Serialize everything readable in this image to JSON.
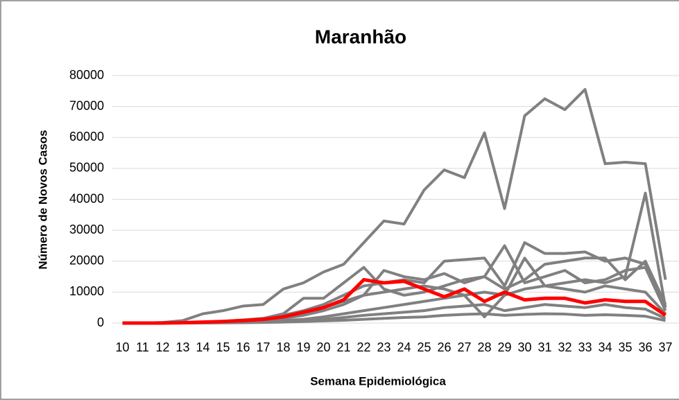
{
  "chart_data": {
    "type": "line",
    "title": "Maranhão",
    "x_label": "Semana Epidemiológica",
    "y_label": "Número de Novos Casos",
    "categories": [
      "10",
      "11",
      "12",
      "13",
      "14",
      "15",
      "16",
      "17",
      "18",
      "19",
      "20",
      "21",
      "22",
      "23",
      "24",
      "25",
      "26",
      "27",
      "28",
      "29",
      "30",
      "31",
      "32",
      "33",
      "34",
      "35",
      "36",
      "37"
    ],
    "ylim": [
      0,
      80000
    ],
    "yticks": [
      0,
      10000,
      20000,
      30000,
      40000,
      50000,
      60000,
      70000,
      80000
    ],
    "grid": true,
    "series": [
      {
        "color": "#808080",
        "values": [
          0,
          0,
          200,
          800,
          3000,
          4000,
          5500,
          6000,
          11000,
          13000,
          16500,
          19000,
          26000,
          33000,
          32000,
          43000,
          49500,
          47000,
          61500,
          37000,
          67000,
          72500,
          69000,
          75500,
          51500,
          52000,
          51500,
          14000
        ]
      },
      {
        "color": "#808080",
        "values": [
          0,
          0,
          0,
          100,
          300,
          600,
          1000,
          1500,
          2500,
          4000,
          6000,
          9000,
          12000,
          13000,
          14000,
          13000,
          20000,
          20500,
          21000,
          12000,
          26000,
          22500,
          22500,
          23000,
          20000,
          21000,
          19000,
          5000
        ]
      },
      {
        "color": "#808080",
        "values": [
          0,
          0,
          0,
          50,
          200,
          400,
          700,
          1000,
          1800,
          3000,
          5000,
          7000,
          9000,
          10000,
          11000,
          12000,
          11000,
          9000,
          10000,
          9000,
          11000,
          12000,
          13000,
          14000,
          13000,
          15000,
          42000,
          5000
        ]
      },
      {
        "color": "#808080",
        "values": [
          0,
          0,
          0,
          100,
          200,
          500,
          900,
          1500,
          3000,
          8000,
          8000,
          13000,
          18000,
          11000,
          9000,
          10000,
          12000,
          14000,
          15000,
          11000,
          14000,
          19000,
          20000,
          21000,
          21000,
          14000,
          20000,
          6000
        ]
      },
      {
        "color": "#808080",
        "values": [
          0,
          0,
          0,
          50,
          150,
          300,
          600,
          900,
          1500,
          2500,
          4000,
          6000,
          9000,
          17000,
          15000,
          14000,
          16000,
          13000,
          15000,
          25000,
          13000,
          15000,
          17000,
          13000,
          14000,
          17000,
          18000,
          4000
        ]
      },
      {
        "color": "#808080",
        "values": [
          0,
          0,
          0,
          0,
          100,
          200,
          300,
          500,
          800,
          1200,
          2000,
          3000,
          4000,
          5000,
          6000,
          7000,
          8000,
          9000,
          2000,
          9000,
          21000,
          12000,
          11000,
          10000,
          12000,
          11000,
          10000,
          3000
        ]
      },
      {
        "color": "#808080",
        "values": [
          0,
          0,
          0,
          0,
          50,
          100,
          200,
          300,
          500,
          800,
          1200,
          1800,
          2500,
          3000,
          3500,
          4000,
          5000,
          5500,
          6000,
          4000,
          5000,
          6000,
          5500,
          5000,
          6000,
          5000,
          4500,
          1500
        ]
      },
      {
        "color": "#808080",
        "values": [
          0,
          0,
          0,
          0,
          20,
          50,
          100,
          200,
          300,
          500,
          700,
          900,
          1200,
          1500,
          1800,
          2000,
          2500,
          2800,
          3000,
          2500,
          2800,
          3000,
          2900,
          2500,
          2700,
          2500,
          2200,
          800
        ]
      },
      {
        "color": "#ff0000",
        "values": [
          0,
          0,
          0,
          100,
          300,
          500,
          800,
          1200,
          2000,
          3500,
          5000,
          7500,
          14000,
          13000,
          13500,
          11000,
          8500,
          11000,
          7000,
          10000,
          7500,
          8000,
          8000,
          6500,
          7500,
          7000,
          7000,
          2500
        ]
      }
    ]
  }
}
